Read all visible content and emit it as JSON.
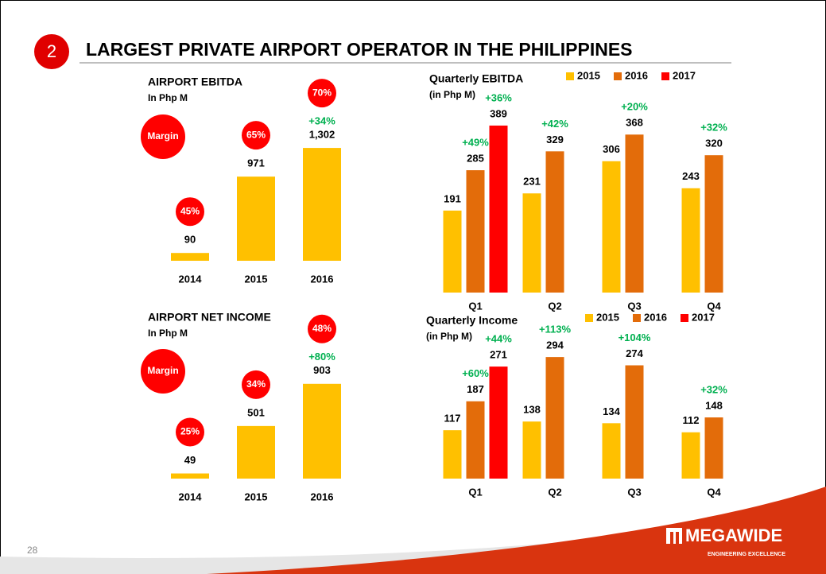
{
  "slide": {
    "section_number": "2",
    "title": "LARGEST PRIVATE AIRPORT OPERATOR IN THE PHILIPPINES",
    "page_number": "28",
    "logo": "MEGAWIDE",
    "tagline": "ENGINEERING EXCELLENCE"
  },
  "chart_data": [
    {
      "type": "bar",
      "title": "AIRPORT EBITDA",
      "subtitle": "In Php M",
      "categories": [
        "2014",
        "2015",
        "2016"
      ],
      "values": [
        90,
        971,
        1302
      ],
      "value_labels": [
        "90",
        "971",
        "1,302"
      ],
      "color": "#FFC000",
      "margin_title": "Margin",
      "margin_labels": [
        "45%",
        "65%",
        "70%"
      ],
      "growth_labels": [
        null,
        null,
        "+34%"
      ]
    },
    {
      "type": "grouped_bar",
      "title": "Quarterly EBITDA",
      "subtitle": "(in Php M)",
      "categories": [
        "Q1",
        "Q2",
        "Q3",
        "Q4"
      ],
      "legend": "top-right",
      "series": [
        {
          "name": "2015",
          "color": "#FFC000",
          "values": [
            191,
            231,
            306,
            243
          ],
          "growth_labels": [
            null,
            null,
            null,
            null
          ]
        },
        {
          "name": "2016",
          "color": "#E36C0A",
          "values": [
            285,
            329,
            368,
            320
          ],
          "growth_labels": [
            "+49%",
            "+42%",
            "+20%",
            "+32%"
          ]
        },
        {
          "name": "2017",
          "color": "#FF0000",
          "values": [
            389,
            null,
            null,
            null
          ],
          "growth_labels": [
            "+36%",
            null,
            null,
            null
          ]
        }
      ]
    },
    {
      "type": "bar",
      "title": "AIRPORT NET INCOME",
      "subtitle": "In Php M",
      "categories": [
        "2014",
        "2015",
        "2016"
      ],
      "values": [
        49,
        501,
        903
      ],
      "value_labels": [
        "49",
        "501",
        "903"
      ],
      "color": "#FFC000",
      "margin_title": "Margin",
      "margin_labels": [
        "25%",
        "34%",
        "48%"
      ],
      "growth_labels": [
        null,
        null,
        "+80%"
      ]
    },
    {
      "type": "grouped_bar",
      "title": "Quarterly Income",
      "subtitle": "(in Php M)",
      "categories": [
        "Q1",
        "Q2",
        "Q3",
        "Q4"
      ],
      "legend": "top-right",
      "series": [
        {
          "name": "2015",
          "color": "#FFC000",
          "values": [
            117,
            138,
            134,
            112
          ],
          "growth_labels": [
            null,
            null,
            null,
            null
          ]
        },
        {
          "name": "2016",
          "color": "#E36C0A",
          "values": [
            187,
            294,
            274,
            148
          ],
          "growth_labels": [
            "+60%",
            "+113%",
            "+104%",
            "+32%"
          ]
        },
        {
          "name": "2017",
          "color": "#FF0000",
          "values": [
            271,
            null,
            null,
            null
          ],
          "growth_labels": [
            "+44%",
            null,
            null,
            null
          ]
        }
      ]
    }
  ]
}
